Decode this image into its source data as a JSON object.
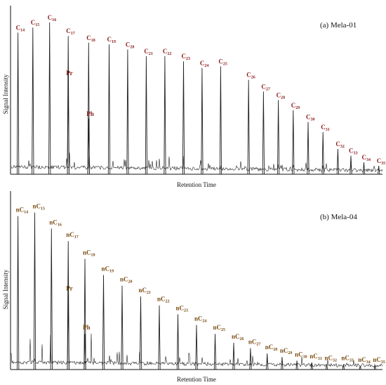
{
  "colors": {
    "trace": "#222222",
    "axis": "#111111",
    "label_panel_a": "#8b1a1a",
    "label_panel_b": "#7a4a10",
    "label_background": "#f7ecec"
  },
  "chart_data": [
    {
      "type": "line",
      "title": "(a) Mela-01",
      "xlabel": "Retention Time",
      "ylabel": "Signal Intensity",
      "xlim": [
        0,
        100
      ],
      "ylim": [
        0,
        100
      ],
      "grid": false,
      "legend": "none",
      "peaks": [
        {
          "label": "C",
          "sub": "14",
          "x": 2,
          "y": 84
        },
        {
          "label": "C",
          "sub": "15",
          "x": 6,
          "y": 87
        },
        {
          "label": "C",
          "sub": "16",
          "x": 10.5,
          "y": 90
        },
        {
          "label": "C",
          "sub": "17",
          "x": 15.5,
          "y": 82
        },
        {
          "label": "Pr",
          "sub": "",
          "x": 15.5,
          "y": 57
        },
        {
          "label": "C",
          "sub": "18",
          "x": 21,
          "y": 78
        },
        {
          "label": "Ph",
          "sub": "",
          "x": 21,
          "y": 33
        },
        {
          "label": "C",
          "sub": "19",
          "x": 26.5,
          "y": 77
        },
        {
          "label": "C",
          "sub": "20",
          "x": 31.5,
          "y": 74
        },
        {
          "label": "C",
          "sub": "21",
          "x": 36.5,
          "y": 70
        },
        {
          "label": "C",
          "sub": "22",
          "x": 41.5,
          "y": 70
        },
        {
          "label": "C",
          "sub": "23",
          "x": 46.5,
          "y": 67
        },
        {
          "label": "C",
          "sub": "24",
          "x": 51.5,
          "y": 63
        },
        {
          "label": "C",
          "sub": "25",
          "x": 56.5,
          "y": 64
        },
        {
          "label": "C",
          "sub": "26",
          "x": 64,
          "y": 56
        },
        {
          "label": "C",
          "sub": "27",
          "x": 68,
          "y": 49
        },
        {
          "label": "C",
          "sub": "28",
          "x": 72,
          "y": 44
        },
        {
          "label": "C",
          "sub": "29",
          "x": 76,
          "y": 38
        },
        {
          "label": "C",
          "sub": "30",
          "x": 80,
          "y": 31
        },
        {
          "label": "C",
          "sub": "31",
          "x": 84,
          "y": 25
        },
        {
          "label": "C",
          "sub": "32",
          "x": 88,
          "y": 15
        },
        {
          "label": "C",
          "sub": "33",
          "x": 91.5,
          "y": 11
        },
        {
          "label": "C",
          "sub": "34",
          "x": 95,
          "y": 7
        },
        {
          "label": "C",
          "sub": "35",
          "x": 99,
          "y": 5
        }
      ]
    },
    {
      "type": "line",
      "title": "(b) Mela-04",
      "xlabel": "Retention Time",
      "ylabel": "Signal Intensity",
      "xlim": [
        0,
        100
      ],
      "ylim": [
        0,
        100
      ],
      "grid": false,
      "legend": "none",
      "peaks": [
        {
          "label": "nC",
          "sub": "14",
          "x": 2,
          "y": 86
        },
        {
          "label": "nC",
          "sub": "15",
          "x": 6.5,
          "y": 88
        },
        {
          "label": "nC",
          "sub": "16",
          "x": 11,
          "y": 79
        },
        {
          "label": "nC",
          "sub": "17",
          "x": 15.5,
          "y": 72
        },
        {
          "label": "Pr",
          "sub": "",
          "x": 15.5,
          "y": 42
        },
        {
          "label": "nC",
          "sub": "18",
          "x": 20,
          "y": 62
        },
        {
          "label": "Ph",
          "sub": "",
          "x": 20,
          "y": 20
        },
        {
          "label": "nC",
          "sub": "19",
          "x": 25,
          "y": 53
        },
        {
          "label": "nC",
          "sub": "20",
          "x": 30,
          "y": 47
        },
        {
          "label": "nC",
          "sub": "21",
          "x": 35,
          "y": 41
        },
        {
          "label": "nC",
          "sub": "22",
          "x": 40,
          "y": 36
        },
        {
          "label": "nC",
          "sub": "23",
          "x": 45,
          "y": 31
        },
        {
          "label": "nC",
          "sub": "24",
          "x": 50,
          "y": 25
        },
        {
          "label": "nC",
          "sub": "25",
          "x": 55,
          "y": 20
        },
        {
          "label": "nC",
          "sub": "26",
          "x": 60,
          "y": 15
        },
        {
          "label": "nC",
          "sub": "27",
          "x": 64.5,
          "y": 12
        },
        {
          "label": "nC",
          "sub": "28",
          "x": 69,
          "y": 9
        },
        {
          "label": "nC",
          "sub": "29",
          "x": 73,
          "y": 7
        },
        {
          "label": "nC",
          "sub": "30",
          "x": 77,
          "y": 5
        },
        {
          "label": "nC",
          "sub": "31",
          "x": 81,
          "y": 4
        },
        {
          "label": "nC",
          "sub": "32",
          "x": 85,
          "y": 3
        },
        {
          "label": "nC",
          "sub": "33",
          "x": 89.5,
          "y": 3
        },
        {
          "label": "nC",
          "sub": "34",
          "x": 94,
          "y": 2
        },
        {
          "label": "nC",
          "sub": "35",
          "x": 98,
          "y": 2
        }
      ]
    }
  ]
}
